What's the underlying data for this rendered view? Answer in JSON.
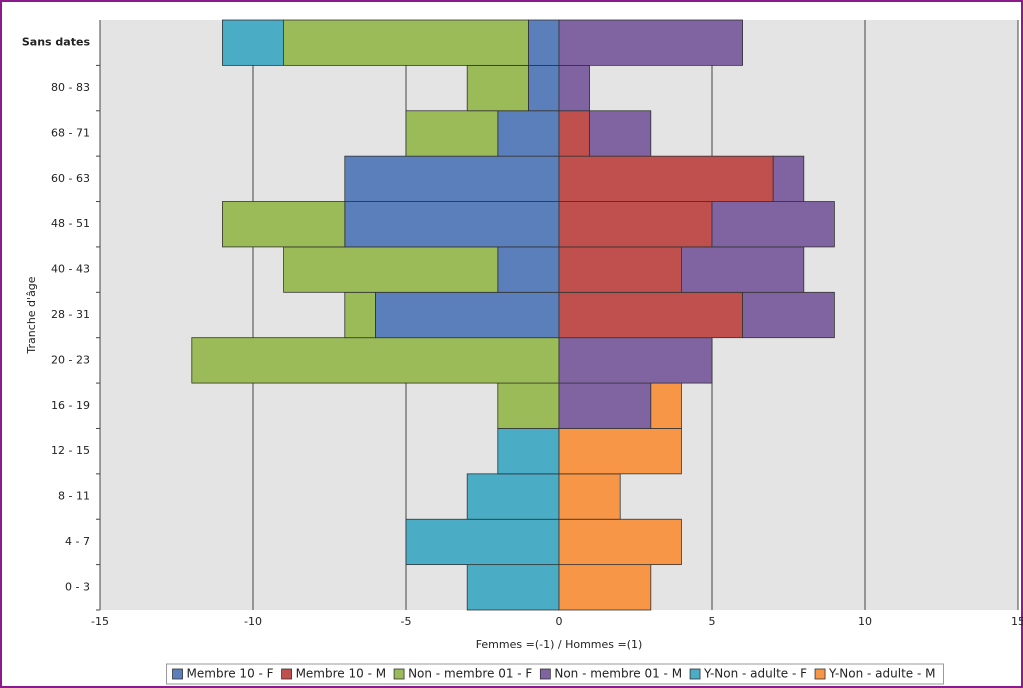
{
  "chart_data": {
    "type": "bar",
    "orientation": "horizontal",
    "stacked": true,
    "x_label": "Femmes =(-1) / Hommes =(1)",
    "y_label": "Tranche d'âge",
    "categories": [
      "0 - 3",
      "4 - 7",
      "8 - 11",
      "12 - 15",
      "16 - 19",
      "20 - 23",
      "28 - 31",
      "40 - 43",
      "48 - 51",
      "60 - 63",
      "68 - 71",
      "80 - 83",
      "Sans dates"
    ],
    "series": [
      {
        "name": "Membre 10 - F",
        "color": "#5b7fbb",
        "values": [
          0,
          0,
          0,
          0,
          0,
          0,
          -6,
          -2,
          -7,
          -7,
          -2,
          -1,
          -1
        ]
      },
      {
        "name": "Membre 10 - M",
        "color": "#c0504d",
        "values": [
          0,
          0,
          0,
          0,
          0,
          0,
          6,
          4,
          5,
          7,
          1,
          0,
          0
        ]
      },
      {
        "name": "Non - membre 01 - F",
        "color": "#9bbb59",
        "values": [
          0,
          0,
          0,
          0,
          -2,
          -12,
          -1,
          -7,
          -4,
          0,
          -3,
          -2,
          -8
        ]
      },
      {
        "name": "Non - membre 01 - M",
        "color": "#8064a2",
        "values": [
          0,
          0,
          0,
          0,
          3,
          5,
          3,
          4,
          4,
          1,
          2,
          1,
          6
        ]
      },
      {
        "name": "Y-Non - adulte - F",
        "color": "#4bacc6",
        "values": [
          -3,
          -5,
          -3,
          -2,
          0,
          0,
          0,
          0,
          0,
          0,
          0,
          0,
          -2
        ]
      },
      {
        "name": "Y-Non - adulte - M",
        "color": "#f79646",
        "values": [
          3,
          4,
          2,
          4,
          1,
          0,
          0,
          0,
          0,
          0,
          0,
          0,
          0
        ]
      }
    ],
    "xlim": [
      -15,
      15
    ],
    "xticks": [
      -15,
      -10,
      -5,
      0,
      5,
      10,
      15
    ],
    "grid": true,
    "legend": "bottom"
  }
}
